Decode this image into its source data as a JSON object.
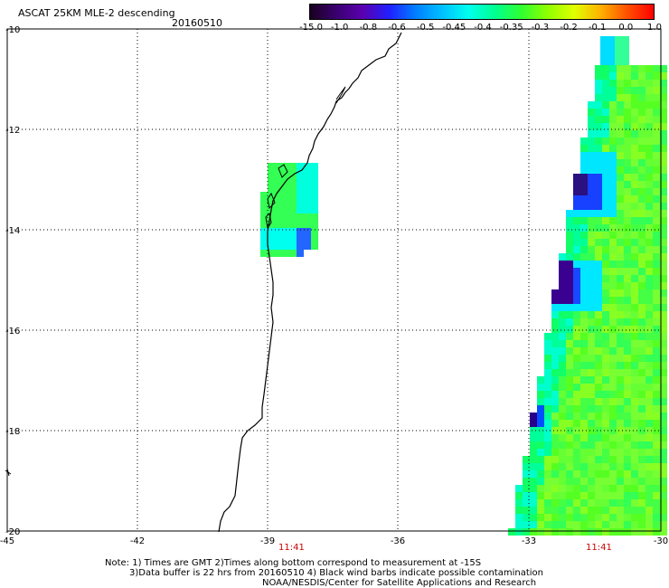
{
  "header": {
    "title": "ASCAT 25KM MLE-2 descending",
    "date": "20160510"
  },
  "colorbar": {
    "labels": [
      "-15.0",
      "-1.0",
      "-0.8",
      "-0.6",
      "-0.5",
      "-0.45",
      "-0.4",
      "-0.35",
      "-0.3",
      "-0.2",
      "-0.1",
      "0.0",
      "1.0"
    ],
    "colors": [
      "#1a0020",
      "#3a0070",
      "#5a00b0",
      "#2020ff",
      "#0080ff",
      "#00c0ff",
      "#00ffee",
      "#00ff90",
      "#30ff30",
      "#90ff00",
      "#e0ff00",
      "#ffb000",
      "#ff5000",
      "#ff0000"
    ]
  },
  "axes": {
    "x_ticks": [
      "-45",
      "-42",
      "-39",
      "-36",
      "-33",
      "-30"
    ],
    "y_ticks": [
      "-10",
      "-12",
      "-14",
      "-16",
      "-18",
      "-20"
    ]
  },
  "times": [
    "11:41",
    "11:41"
  ],
  "notes": {
    "line1": "Note: 1) Times are GMT 2)Times along bottom correspond to measurement at -15S",
    "line2": "3)Data buffer is 22 hrs from 20160510 4) Black wind barbs indicate possible contamination",
    "line3": "NOAA/NESDIS/Center for Satellite Applications and Research"
  }
}
